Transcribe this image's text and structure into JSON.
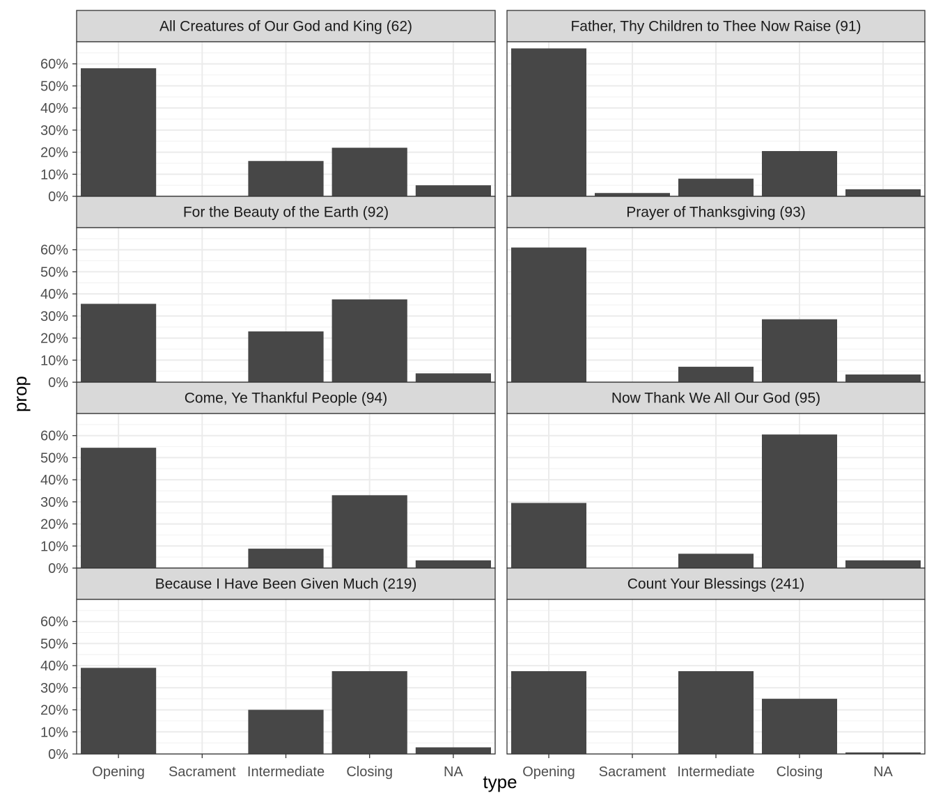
{
  "chart_data": {
    "type": "bar",
    "facet_layout": {
      "rows": 4,
      "cols": 2
    },
    "xlabel": "type",
    "ylabel": "prop",
    "categories": [
      "Opening",
      "Sacrament",
      "Intermediate",
      "Closing",
      "NA"
    ],
    "ylim": [
      0,
      0.7
    ],
    "y_ticks": [
      0,
      0.1,
      0.2,
      0.3,
      0.4,
      0.5,
      0.6
    ],
    "y_tick_labels": [
      "0%",
      "10%",
      "20%",
      "30%",
      "40%",
      "50%",
      "60%"
    ],
    "grid": true,
    "legend": "none",
    "colors": {
      "bar": "#474747",
      "strip_fill": "#d9d9d9",
      "strip_border": "#333333",
      "panel_border": "#333333",
      "grid_major": "#ebebeb",
      "grid_minor": "#f3f3f3",
      "tick_text": "#4d4d4d"
    },
    "panels": [
      {
        "title": "All Creatures of Our God and King (62)",
        "values": [
          0.58,
          0.0,
          0.16,
          0.22,
          0.05
        ]
      },
      {
        "title": "Father, Thy Children to Thee Now Raise (91)",
        "values": [
          0.67,
          0.015,
          0.08,
          0.205,
          0.032
        ]
      },
      {
        "title": "For the Beauty of the Earth (92)",
        "values": [
          0.355,
          0.0,
          0.23,
          0.375,
          0.04
        ]
      },
      {
        "title": "Prayer of Thanksgiving (93)",
        "values": [
          0.61,
          0.0,
          0.07,
          0.285,
          0.035
        ]
      },
      {
        "title": "Come, Ye Thankful People (94)",
        "values": [
          0.545,
          0.0,
          0.088,
          0.33,
          0.035
        ]
      },
      {
        "title": "Now Thank We All Our God (95)",
        "values": [
          0.295,
          0.0,
          0.065,
          0.605,
          0.035
        ]
      },
      {
        "title": "Because I Have Been Given Much (219)",
        "values": [
          0.39,
          0.0,
          0.2,
          0.375,
          0.03
        ]
      },
      {
        "title": "Count Your Blessings (241)",
        "values": [
          0.375,
          0.0,
          0.375,
          0.25,
          0.007
        ]
      }
    ]
  }
}
